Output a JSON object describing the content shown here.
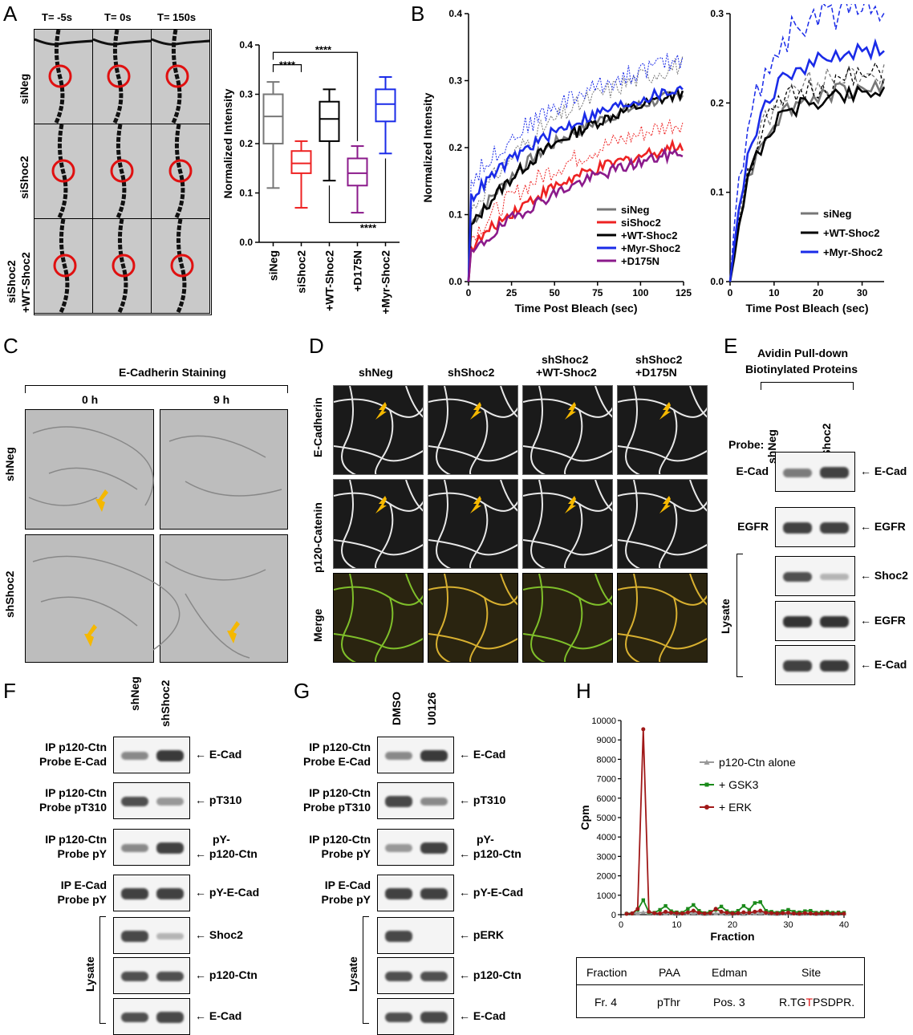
{
  "panels": {
    "A": "A",
    "B": "B",
    "C": "C",
    "D": "D",
    "E": "E",
    "F": "F",
    "G": "G",
    "H": "H"
  },
  "colors": {
    "gray": "#777777",
    "red": "#ee2222",
    "black": "#000000",
    "purple": "#8b1a8b",
    "blue": "#1a2be8",
    "green": "#1a8a1a",
    "darkred": "#a01818",
    "orange": "#f5b800"
  },
  "A": {
    "time_labels": [
      "T= -5s",
      "T= 0s",
      "T= 150s"
    ],
    "row_labels": [
      "siNeg",
      "siShoc2",
      "siShoc2\n+WT-Shoc2"
    ],
    "row_label_lines": [
      [
        "siNeg"
      ],
      [
        "siShoc2"
      ],
      [
        "siShoc2",
        "+WT-Shoc2"
      ]
    ]
  },
  "chart_A": {
    "type": "box",
    "ylabel": "Normalized Intensity",
    "ylim": [
      0.0,
      0.4
    ],
    "yticks": [
      "0.0",
      "0.1",
      "0.2",
      "0.3",
      "0.4"
    ],
    "categories": [
      "siNeg",
      "siShoc2",
      "+WT-Shoc2",
      "+D175N",
      "+Myr-Shoc2"
    ],
    "boxes": [
      {
        "min": 0.11,
        "q1": 0.2,
        "median": 0.255,
        "q3": 0.3,
        "max": 0.325,
        "color": "#777777"
      },
      {
        "min": 0.07,
        "q1": 0.14,
        "median": 0.16,
        "q3": 0.185,
        "max": 0.205,
        "color": "#ee2222"
      },
      {
        "min": 0.125,
        "q1": 0.205,
        "median": 0.25,
        "q3": 0.285,
        "max": 0.31,
        "color": "#000000"
      },
      {
        "min": 0.06,
        "q1": 0.115,
        "median": 0.14,
        "q3": 0.17,
        "max": 0.195,
        "color": "#8b1a8b"
      },
      {
        "min": 0.18,
        "q1": 0.245,
        "median": 0.28,
        "q3": 0.31,
        "max": 0.335,
        "color": "#1a2be8"
      }
    ],
    "significance": [
      "****",
      "****",
      "****"
    ]
  },
  "chart_B1": {
    "type": "line",
    "xlabel": "Time Post Bleach (sec)",
    "ylabel": "Normalized Intensity",
    "xlim": [
      0,
      125
    ],
    "ylim": [
      0,
      0.4
    ],
    "xticks": [
      "0",
      "25",
      "50",
      "75",
      "100",
      "125"
    ],
    "yticks": [
      "0.0",
      "0.1",
      "0.2",
      "0.3",
      "0.4"
    ],
    "legend": [
      "siNeg",
      "siShoc2",
      "+WT-Shoc2",
      "+Myr-Shoc2",
      "+D175N"
    ],
    "series": [
      {
        "name": "siNeg",
        "color": "#777777",
        "a": 0.075,
        "b": 0.22,
        "x0": 0
      },
      {
        "name": "siShoc2",
        "color": "#ee2222",
        "a": 0.04,
        "b": 0.14,
        "x0": 0
      },
      {
        "name": "+WT-Shoc2",
        "color": "#000000",
        "a": 0.07,
        "b": 0.22,
        "x0": 0
      },
      {
        "name": "+Myr-Shoc2",
        "color": "#1a2be8",
        "a": 0.11,
        "b": 0.21,
        "x0": 0
      },
      {
        "name": "+D175N",
        "color": "#8b1a8b",
        "a": 0.03,
        "b": 0.135,
        "x0": 0
      }
    ]
  },
  "chart_B2": {
    "type": "line",
    "xlabel": "Time Post Bleach (sec)",
    "xlim": [
      0,
      35
    ],
    "ylim": [
      0,
      0.3
    ],
    "xticks": [
      "0",
      "10",
      "20",
      "30"
    ],
    "yticks": [
      "0.0",
      "0.1",
      "0.2",
      "0.3"
    ],
    "legend": [
      "siNeg",
      "+WT-Shoc2",
      "+Myr-Shoc2"
    ],
    "series": [
      {
        "name": "siNeg",
        "color": "#777777"
      },
      {
        "name": "+WT-Shoc2",
        "color": "#000000"
      },
      {
        "name": "+Myr-Shoc2",
        "color": "#1a2be8"
      }
    ]
  },
  "C": {
    "title": "E-Cadherin Staining",
    "cols": [
      "0 h",
      "9 h"
    ],
    "rows": [
      "shNeg",
      "shShoc2"
    ]
  },
  "D": {
    "cols": [
      "shNeg",
      "shShoc2",
      "shShoc2\n+WT-Shoc2",
      "shShoc2\n+D175N"
    ],
    "col_lines": [
      [
        "shNeg"
      ],
      [
        "shShoc2"
      ],
      [
        "shShoc2",
        "+WT-Shoc2"
      ],
      [
        "shShoc2",
        "+D175N"
      ]
    ],
    "rows": [
      "E-Cadherin",
      "p120-Catenin",
      "Merge"
    ]
  },
  "E": {
    "title_lines": [
      "Avidin Pull-down",
      "Biotinylated Proteins"
    ],
    "lanes": [
      "shNeg",
      "shShoc2"
    ],
    "probe_label": "Probe:",
    "lysate_label": "Lysate",
    "blots": [
      {
        "left": "E-Cad",
        "right": "← E-Cad"
      },
      {
        "left": "EGFR",
        "right": "← EGFR"
      },
      {
        "left": "",
        "right": "← Shoc2"
      },
      {
        "left": "",
        "right": "← EGFR"
      },
      {
        "left": "",
        "right": "← E-Cad"
      }
    ]
  },
  "F": {
    "lanes": [
      "shNeg",
      "shShoc2"
    ],
    "lysate_label": "Lysate",
    "blots": [
      {
        "left": [
          "IP p120-Ctn",
          "Probe E-Cad"
        ],
        "right": [
          "← E-Cad"
        ]
      },
      {
        "left": [
          "IP p120-Ctn",
          "Probe pT310"
        ],
        "right": [
          "← pT310"
        ]
      },
      {
        "left": [
          "IP p120-Ctn",
          "Probe pY"
        ],
        "right": [
          "pY-",
          "← p120-Ctn"
        ]
      },
      {
        "left": [
          "IP E-Cad",
          "Probe pY"
        ],
        "right": [
          "← pY-E-Cad"
        ]
      },
      {
        "left": [],
        "right": [
          "← Shoc2"
        ]
      },
      {
        "left": [],
        "right": [
          "← p120-Ctn"
        ]
      },
      {
        "left": [],
        "right": [
          "← E-Cad"
        ]
      }
    ]
  },
  "G": {
    "lanes": [
      "DMSO",
      "U0126"
    ],
    "lysate_label": "Lysate",
    "blots": [
      {
        "left": [
          "IP p120-Ctn",
          "Probe E-Cad"
        ],
        "right": [
          "← E-Cad"
        ]
      },
      {
        "left": [
          "IP p120-Ctn",
          "Probe pT310"
        ],
        "right": [
          "← pT310"
        ]
      },
      {
        "left": [
          "IP p120-Ctn",
          "Probe pY"
        ],
        "right": [
          "pY-",
          "← p120-Ctn"
        ]
      },
      {
        "left": [
          "IP E-Cad",
          "Probe pY"
        ],
        "right": [
          "← pY-E-Cad"
        ]
      },
      {
        "left": [],
        "right": [
          "← pERK"
        ]
      },
      {
        "left": [],
        "right": [
          "← p120-Ctn"
        ]
      },
      {
        "left": [],
        "right": [
          "← E-Cad"
        ]
      }
    ]
  },
  "chart_H": {
    "type": "line",
    "xlabel": "Fraction",
    "ylabel": "Cpm",
    "xlim": [
      0,
      40
    ],
    "ylim": [
      0,
      10000
    ],
    "xticks": [
      "0",
      "10",
      "20",
      "30",
      "40"
    ],
    "yticks": [
      "0",
      "1000",
      "2000",
      "3000",
      "4000",
      "5000",
      "6000",
      "7000",
      "8000",
      "9000",
      "10000"
    ],
    "legend": [
      "p120-Ctn alone",
      "+ GSK3",
      "+ ERK"
    ],
    "series": [
      {
        "name": "p120-Ctn alone",
        "color": "#999999",
        "marker": "triangle",
        "x": [
          1,
          2,
          3,
          4,
          5,
          6,
          7,
          8,
          9,
          10,
          11,
          12,
          13,
          14,
          15,
          16,
          17,
          18,
          19,
          20,
          21,
          22,
          23,
          24,
          25,
          26,
          27,
          28,
          29,
          30,
          31,
          32,
          33,
          34,
          35,
          36,
          37,
          38,
          39,
          40
        ],
        "y": [
          80,
          70,
          90,
          120,
          100,
          60,
          50,
          90,
          70,
          40,
          60,
          80,
          100,
          60,
          40,
          50,
          70,
          60,
          40,
          50,
          60,
          40,
          80,
          90,
          100,
          70,
          50,
          40,
          60,
          80,
          60,
          40,
          50,
          60,
          40,
          50,
          60,
          40,
          50,
          60
        ]
      },
      {
        "name": "+ GSK3",
        "color": "#1a8a1a",
        "marker": "square",
        "x": [
          1,
          2,
          3,
          4,
          5,
          6,
          7,
          8,
          9,
          10,
          11,
          12,
          13,
          14,
          15,
          16,
          17,
          18,
          19,
          20,
          21,
          22,
          23,
          24,
          25,
          26,
          27,
          28,
          29,
          30,
          31,
          32,
          33,
          34,
          35,
          36,
          37,
          38,
          39,
          40
        ],
        "y": [
          50,
          60,
          250,
          750,
          120,
          100,
          250,
          450,
          180,
          120,
          100,
          300,
          500,
          200,
          80,
          150,
          250,
          420,
          180,
          100,
          200,
          450,
          250,
          600,
          650,
          200,
          150,
          100,
          180,
          250,
          150,
          120,
          180,
          200,
          100,
          120,
          150,
          100,
          120,
          100
        ]
      },
      {
        "name": "+ ERK",
        "color": "#a01818",
        "marker": "circle",
        "x": [
          1,
          2,
          3,
          4,
          5,
          6,
          7,
          8,
          9,
          10,
          11,
          12,
          13,
          14,
          15,
          16,
          17,
          18,
          19,
          20,
          21,
          22,
          23,
          24,
          25,
          26,
          27,
          28,
          29,
          30,
          31,
          32,
          33,
          34,
          35,
          36,
          37,
          38,
          39,
          40
        ],
        "y": [
          40,
          60,
          300,
          9550,
          150,
          80,
          60,
          150,
          100,
          80,
          60,
          120,
          200,
          100,
          60,
          80,
          300,
          150,
          100,
          60,
          80,
          120,
          100,
          150,
          200,
          100,
          80,
          60,
          80,
          100,
          60,
          50,
          80,
          60,
          50,
          60,
          80,
          50,
          60,
          50
        ]
      }
    ]
  },
  "H_table": {
    "headers": [
      "Fraction",
      "PAA",
      "Edman",
      "Site"
    ],
    "row": [
      "Fr. 4",
      "pThr",
      "Pos. 3"
    ],
    "site_prefix": "R.TG",
    "site_highlight": "T",
    "site_suffix": "PSDPR."
  }
}
